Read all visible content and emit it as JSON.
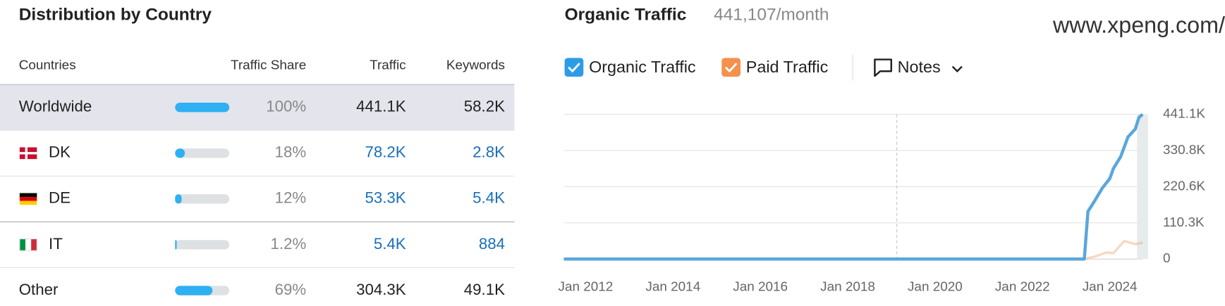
{
  "header": {
    "title": "Distribution by Country"
  },
  "table": {
    "columns": [
      "Countries",
      "Traffic Share",
      "Traffic",
      "Keywords"
    ],
    "rows": [
      {
        "country": "Worldwide",
        "share": 100,
        "share_label": "100%",
        "traffic": "441.1K",
        "keywords": "58.2K"
      },
      {
        "country": "DK",
        "share": 18,
        "share_label": "18%",
        "traffic": "78.2K",
        "keywords": "2.8K"
      },
      {
        "country": "DE",
        "share": 12,
        "share_label": "12%",
        "traffic": "53.3K",
        "keywords": "5.4K"
      },
      {
        "country": "IT",
        "share": 1.2,
        "share_label": "1.2%",
        "traffic": "5.4K",
        "keywords": "884"
      },
      {
        "country": "Other",
        "share": 69,
        "share_label": "69%",
        "traffic": "304.3K",
        "keywords": "49.1K"
      }
    ]
  },
  "site": "www.xpeng.com/",
  "legend_extra": "Notes",
  "chart_data": {
    "type": "line",
    "title": "Organic Traffic",
    "subtitle": "441,107/month",
    "xlim": [
      "2011-07",
      "2024-10"
    ],
    "xticks": [
      {
        "value": "2012-01",
        "label": "Jan 2012"
      },
      {
        "value": "2014-01",
        "label": "Jan 2014"
      },
      {
        "value": "2016-01",
        "label": "Jan 2016"
      },
      {
        "value": "2018-01",
        "label": "Jan 2018"
      },
      {
        "value": "2020-01",
        "label": "Jan 2020"
      },
      {
        "value": "2022-01",
        "label": "Jan 2022"
      },
      {
        "value": "2024-01",
        "label": "Jan 2024"
      }
    ],
    "ylim": [
      0,
      441100
    ],
    "yticks": [
      0,
      {
        "value": 110300,
        "label": "110.3K"
      },
      {
        "value": 220600,
        "label": "220.6K"
      },
      {
        "value": 330800,
        "label": "330.8K"
      },
      {
        "value": 441100,
        "label": "441.1K"
      }
    ],
    "grid": true,
    "series": [
      {
        "name": "Organic Traffic",
        "color": "#5aa6dc",
        "x": [
          "2011-07",
          "2023-06",
          "2023-07",
          "2023-09",
          "2023-11",
          "2024-01",
          "2024-02",
          "2024-04",
          "2024-06",
          "2024-08",
          "2024-09",
          "2024-10"
        ],
        "values": [
          0,
          0,
          145000,
          180000,
          217000,
          245000,
          276000,
          312000,
          372000,
          396000,
          431000,
          441100
        ]
      },
      {
        "name": "Paid Traffic",
        "color": "#f6a56f",
        "x": [
          "2023-06",
          "2023-09",
          "2023-12",
          "2024-02",
          "2024-05",
          "2024-08",
          "2024-10"
        ],
        "values": [
          0,
          8000,
          20000,
          18000,
          55000,
          45000,
          50000
        ]
      }
    ]
  }
}
